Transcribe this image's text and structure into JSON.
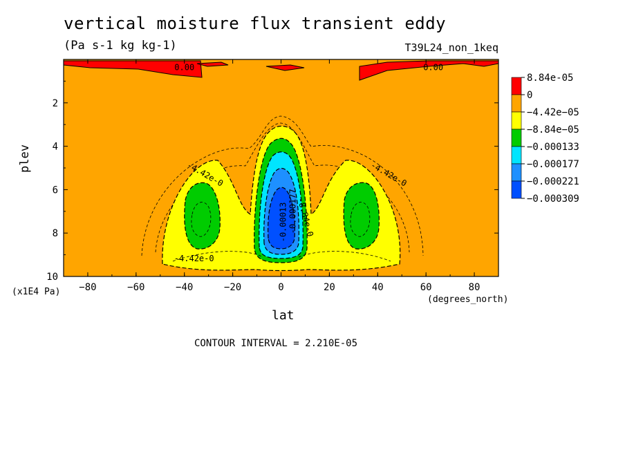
{
  "chart_data": {
    "type": "heatmap",
    "title": "vertical moisture flux transient eddy",
    "subtitle": "(Pa s-1 kg kg-1)",
    "run_label": "T39L24_non_1keq",
    "xlabel": "lat",
    "ylabel": "plev",
    "x_unit": "(degrees_north)",
    "y_unit": "(x1E4 Pa)",
    "xlim": [
      -90,
      90
    ],
    "ylim": [
      10,
      0
    ],
    "x_ticks": [
      "-80",
      "-60",
      "-40",
      "-20",
      "0",
      "20",
      "40",
      "60",
      "80"
    ],
    "y_ticks": [
      "2",
      "4",
      "6",
      "8",
      "10"
    ],
    "contour_interval_text": "CONTOUR INTERVAL = 2.210E-05",
    "contour_labels": [
      "0.00",
      "0.00",
      "-4.42e-0",
      "-4.42e-0",
      "-4.42e-0",
      "-0.00013",
      "-0.000177",
      "-8.84e-0"
    ],
    "levels": [
      {
        "label": "8.84e-05",
        "color": "#ff0000"
      },
      {
        "label": "0",
        "color": "#ffa500"
      },
      {
        "label": "−4.42e−05",
        "color": "#ffff00"
      },
      {
        "label": "−8.84e−05",
        "color": "#00cc00"
      },
      {
        "label": "−0.000133",
        "color": "#00e5ff"
      },
      {
        "label": "−0.000177",
        "color": "#1e90ff"
      },
      {
        "label": "−0.000221",
        "color": "#0050ff"
      },
      {
        "label": "−0.000309",
        "color": ""
      }
    ],
    "background_color": "#ffa500"
  }
}
